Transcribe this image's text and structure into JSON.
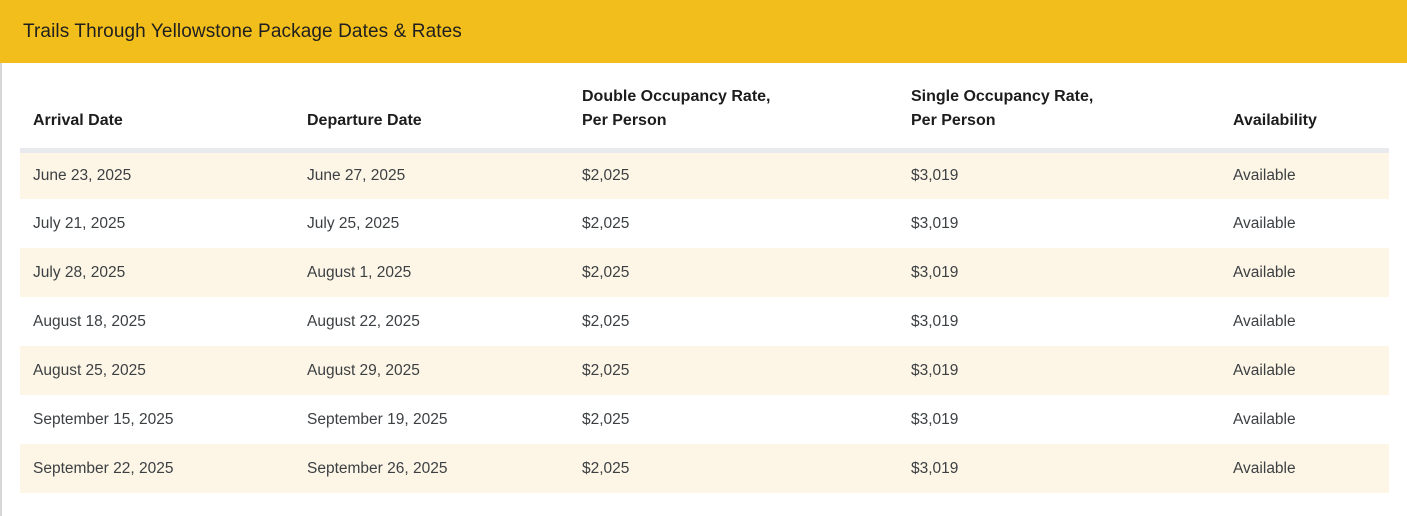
{
  "colors": {
    "accent-gold": "#F2BE1B",
    "row-alt": "#FDF6E6",
    "divider": "#E8EAED",
    "title-text": "#1F1F1F",
    "header-text": "#1C1C1C",
    "cell-text": "#3C4043"
  },
  "title_bar": {
    "title": "Trails Through Yellowstone Package Dates & Rates"
  },
  "table": {
    "columns": [
      {
        "id": "arrival",
        "label": "Arrival Date"
      },
      {
        "id": "departure",
        "label": "Departure Date"
      },
      {
        "id": "double_rate",
        "label": "Double Occupancy Rate,\nPer Person"
      },
      {
        "id": "single_rate",
        "label": "Single Occupancy Rate,\nPer Person"
      },
      {
        "id": "availability",
        "label": "Availability"
      }
    ],
    "rows": [
      {
        "arrival": "June 23, 2025",
        "departure": "June 27, 2025",
        "double_rate": "$2,025",
        "single_rate": "$3,019",
        "availability": "Available"
      },
      {
        "arrival": "July 21, 2025",
        "departure": "July 25, 2025",
        "double_rate": "$2,025",
        "single_rate": "$3,019",
        "availability": "Available"
      },
      {
        "arrival": "July 28, 2025",
        "departure": "August 1, 2025",
        "double_rate": "$2,025",
        "single_rate": "$3,019",
        "availability": "Available"
      },
      {
        "arrival": "August 18, 2025",
        "departure": "August 22, 2025",
        "double_rate": "$2,025",
        "single_rate": "$3,019",
        "availability": "Available"
      },
      {
        "arrival": "August 25, 2025",
        "departure": "August 29, 2025",
        "double_rate": "$2,025",
        "single_rate": "$3,019",
        "availability": "Available"
      },
      {
        "arrival": "September 15, 2025",
        "departure": "September 19, 2025",
        "double_rate": "$2,025",
        "single_rate": "$3,019",
        "availability": "Available"
      },
      {
        "arrival": "September 22, 2025",
        "departure": "September 26, 2025",
        "double_rate": "$2,025",
        "single_rate": "$3,019",
        "availability": "Available"
      }
    ]
  }
}
